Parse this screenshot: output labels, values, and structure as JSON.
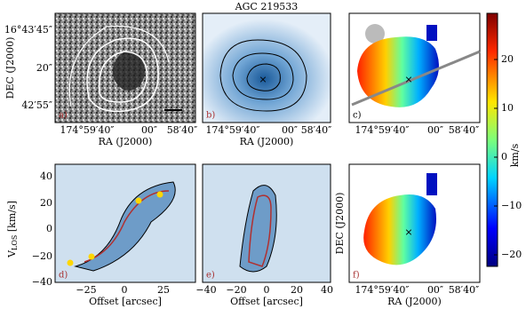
{
  "title": "AGC 219533",
  "colorbar": {
    "label": "km/s",
    "ticks": [
      "20",
      "10",
      "0",
      "−10",
      "−20"
    ]
  },
  "panels": [
    {
      "label": "a)",
      "ylabel": "DEC (J2000)",
      "yticks": [
        "16°43′45″",
        "20″",
        "42′55″"
      ],
      "xlabel": "RA (J2000)",
      "xticks": [
        "174°59′40″",
        "00″",
        "58′40″"
      ]
    },
    {
      "label": "b)",
      "xlabel": "RA (J2000)",
      "xticks": [
        "174°59′40″",
        "00″",
        "58′40″"
      ]
    },
    {
      "label": "c)",
      "xticks": [
        "174°59′40″",
        "00″",
        "58′40″"
      ]
    },
    {
      "label": "d)",
      "ylabel": {
        "main": "V",
        "sub": "LOS",
        "unit": " [km/s]"
      },
      "yticks": [
        "40",
        "20",
        "0",
        "−20",
        "−40"
      ],
      "xlabel": "Offset [arcsec]",
      "xticks": [
        "−25",
        "0",
        "25"
      ]
    },
    {
      "label": "e)",
      "xlabel": "Offset [arcsec]",
      "xticks": [
        "−40",
        "−20",
        "0",
        "20",
        "40"
      ]
    },
    {
      "label": "f)",
      "ylabel": "DEC (J2000)",
      "xlabel": "RA (J2000)",
      "xticks": [
        "174°59′40″",
        "00″",
        "58′40″"
      ]
    }
  ]
}
